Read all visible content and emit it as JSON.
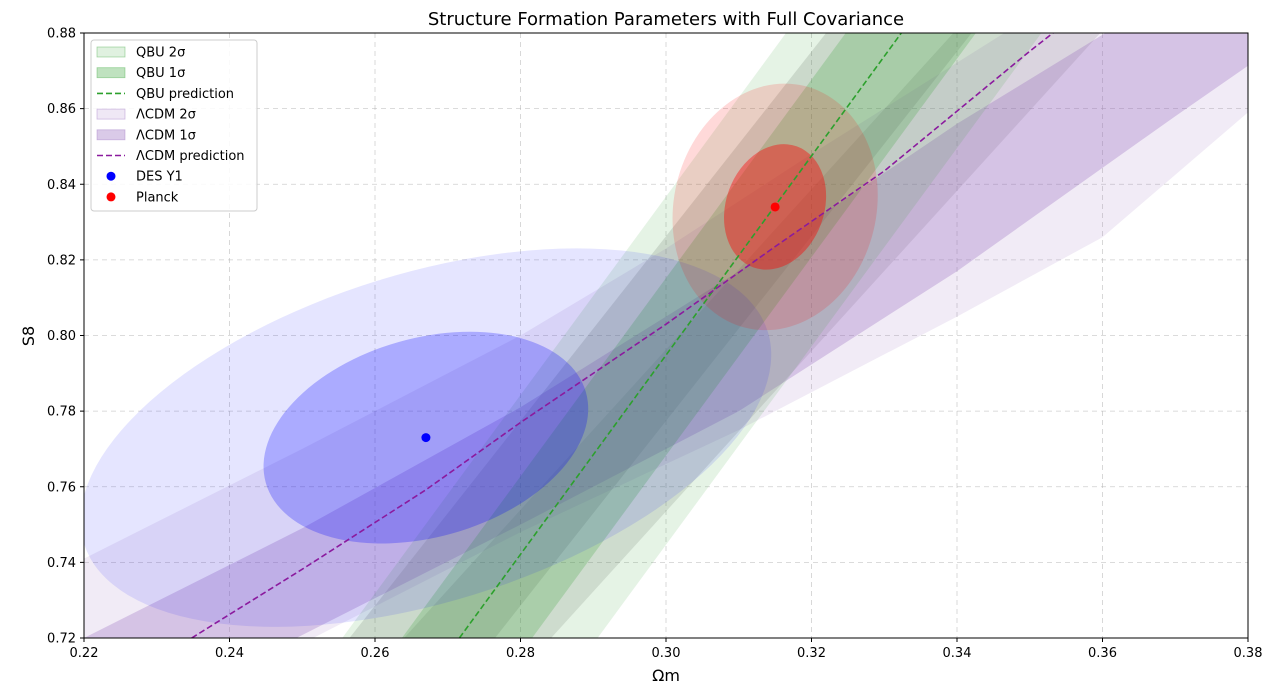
{
  "chart_data": {
    "type": "scatter",
    "title": "Structure Formation Parameters with Full Covariance",
    "xlabel": "Ωm",
    "ylabel": "S8",
    "xlim": [
      0.22,
      0.38
    ],
    "ylim": [
      0.72,
      0.88
    ],
    "xticks": [
      "0.22",
      "0.24",
      "0.26",
      "0.28",
      "0.30",
      "0.32",
      "0.34",
      "0.36",
      "0.38"
    ],
    "yticks": [
      "0.72",
      "0.74",
      "0.76",
      "0.78",
      "0.80",
      "0.82",
      "0.84",
      "0.86",
      "0.88"
    ],
    "grid": true,
    "legend_position": "upper-left",
    "points": [
      {
        "name": "DES Y1",
        "x": 0.267,
        "y": 0.773,
        "color": "#0000ff"
      },
      {
        "name": "Planck",
        "x": 0.315,
        "y": 0.834,
        "color": "#ff0000"
      }
    ],
    "ellipses": [
      {
        "center": [
          0.267,
          0.773
        ],
        "level": "1σ",
        "color": "#0000ff",
        "opacity": 0.25,
        "points": [
          [
            0.245,
            0.761
          ],
          [
            0.267,
            0.75
          ],
          [
            0.289,
            0.776
          ],
          [
            0.28,
            0.796
          ],
          [
            0.246,
            0.768
          ]
        ]
      },
      {
        "center": [
          0.267,
          0.773
        ],
        "level": "2σ",
        "color": "#0000ff",
        "opacity": 0.1,
        "points": [
          [
            0.22,
            0.745
          ],
          [
            0.267,
            0.728
          ],
          [
            0.314,
            0.796
          ],
          [
            0.297,
            0.819
          ],
          [
            0.227,
            0.775
          ]
        ]
      },
      {
        "center": [
          0.315,
          0.834
        ],
        "level": "1σ",
        "color": "#ff0000",
        "opacity": 0.4,
        "points": [
          [
            0.308,
            0.831
          ],
          [
            0.312,
            0.818
          ],
          [
            0.322,
            0.838
          ],
          [
            0.318,
            0.85
          ],
          [
            0.309,
            0.84
          ]
        ]
      },
      {
        "center": [
          0.315,
          0.834
        ],
        "level": "2σ",
        "color": "#ff0000",
        "opacity": 0.15,
        "points": [
          [
            0.301,
            0.829
          ],
          [
            0.31,
            0.803
          ],
          [
            0.329,
            0.841
          ],
          [
            0.319,
            0.866
          ],
          [
            0.302,
            0.841
          ]
        ]
      }
    ],
    "series": [
      {
        "name": "QBU 2σ",
        "kind": "band",
        "color": "#2ca02c",
        "opacity": 0.12,
        "upper": [
          [
            0.2555,
            0.72
          ],
          [
            0.3165,
            0.88
          ]
        ],
        "lower": [
          [
            0.2906,
            0.72
          ],
          [
            0.3516,
            0.88
          ]
        ]
      },
      {
        "name": "QBU 1σ",
        "kind": "band",
        "color": "#2ca02c",
        "opacity": 0.22,
        "upper": [
          [
            0.2637,
            0.72
          ],
          [
            0.3247,
            0.88
          ]
        ],
        "lower": [
          [
            0.2816,
            0.72
          ],
          [
            0.3426,
            0.88
          ]
        ]
      },
      {
        "name": "QBU prediction",
        "kind": "line",
        "color": "#2ca02c",
        "dashed": true,
        "x": [
          0.2716,
          0.3325
        ],
        "y": [
          0.72,
          0.8804
        ]
      },
      {
        "name": "ΛCDM 2σ",
        "kind": "band",
        "color": "#9467bd",
        "opacity": 0.13,
        "upper": [
          [
            0.22,
            0.741
          ],
          [
            0.25,
            0.77
          ],
          [
            0.28,
            0.8
          ],
          [
            0.3,
            0.823
          ],
          [
            0.32,
            0.848
          ],
          [
            0.3465,
            0.88
          ]
        ],
        "lower": [
          [
            0.2515,
            0.72
          ],
          [
            0.28,
            0.748
          ],
          [
            0.31,
            0.775
          ],
          [
            0.34,
            0.805
          ],
          [
            0.36,
            0.826
          ],
          [
            0.38,
            0.859
          ]
        ]
      },
      {
        "name": "ΛCDM 1σ",
        "kind": "band",
        "color": "#9467bd",
        "opacity": 0.3,
        "upper": [
          [
            0.22,
            0.72
          ],
          [
            0.25,
            0.749
          ],
          [
            0.28,
            0.781
          ],
          [
            0.31,
            0.817
          ],
          [
            0.34,
            0.856
          ],
          [
            0.3604,
            0.88
          ]
        ],
        "lower": [
          [
            0.2492,
            0.72
          ],
          [
            0.28,
            0.75
          ],
          [
            0.31,
            0.78
          ],
          [
            0.34,
            0.817
          ],
          [
            0.37,
            0.858
          ],
          [
            0.3865,
            0.88
          ]
        ]
      },
      {
        "name": "ΛCDM prediction",
        "kind": "line",
        "color": "#8b1a9e",
        "dashed": true,
        "x": [
          0.2348,
          0.25,
          0.267,
          0.28,
          0.3,
          0.315,
          0.33,
          0.35,
          0.3532
        ],
        "y": [
          0.72,
          0.7382,
          0.7592,
          0.777,
          0.803,
          0.8235,
          0.8435,
          0.8752,
          0.88
        ]
      }
    ],
    "shaded_bands": [
      {
        "color": "#707070",
        "opacity": 0.2,
        "upper": [
          [
            0.2565,
            0.72
          ],
          [
            0.322,
            0.88
          ]
        ],
        "lower": [
          [
            0.2765,
            0.72
          ],
          [
            0.342,
            0.88
          ]
        ]
      },
      {
        "color": "#707070",
        "opacity": 0.18,
        "upper": [
          [
            0.264,
            0.72
          ],
          [
            0.3395,
            0.88
          ]
        ],
        "lower": [
          [
            0.2842,
            0.72
          ],
          [
            0.3597,
            0.88
          ]
        ]
      }
    ]
  }
}
